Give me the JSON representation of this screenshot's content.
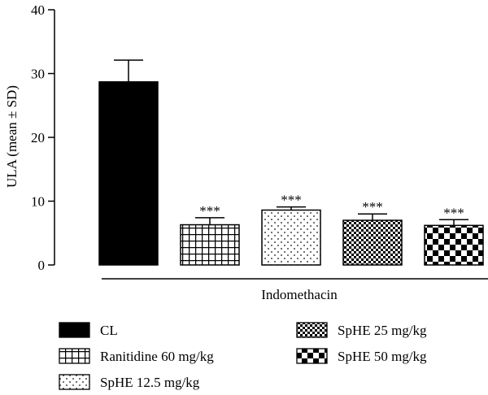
{
  "chart_data": {
    "type": "bar",
    "title": "",
    "xlabel": "",
    "ylabel": "ULA (mean ± SD)",
    "ylim": [
      0,
      40
    ],
    "yticks": [
      0,
      10,
      20,
      30,
      40
    ],
    "group_label": "Indomethacin",
    "grid": false,
    "legend_position": "bottom",
    "categories": [
      "CL",
      "Ranitidine 60 mg/kg",
      "SpHE 12.5 mg/kg",
      "SpHE 25 mg/kg",
      "SpHE 50 mg/kg"
    ],
    "values": [
      28.7,
      6.3,
      8.6,
      7.0,
      6.2
    ],
    "errors": [
      3.4,
      1.1,
      0.5,
      1.0,
      0.9
    ],
    "significance": [
      "",
      "***",
      "***",
      "***",
      "***"
    ],
    "patterns": [
      "solid-black",
      "grid",
      "dots",
      "fine-checker",
      "large-checker"
    ],
    "colors": {
      "bar_fill": "#000000",
      "background": "#ffffff"
    }
  }
}
